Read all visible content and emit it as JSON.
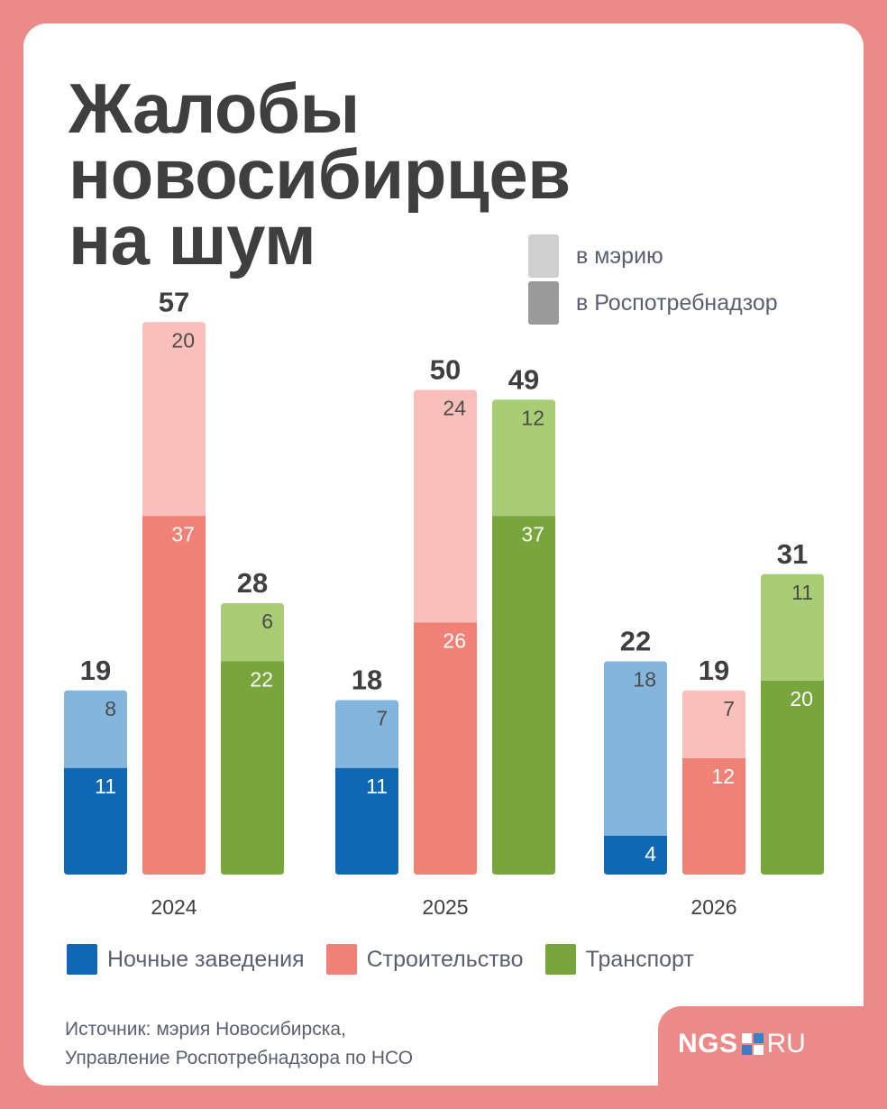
{
  "title_lines": [
    "Жалобы",
    "новосибирцев",
    "на шум"
  ],
  "legend_top": [
    {
      "label": "в мэрию",
      "color": "#cfcfcf"
    },
    {
      "label": "в Роспотребнадзор",
      "color": "#9a9a9a"
    }
  ],
  "colors": {
    "nightlife": {
      "dark": "#1068b4",
      "light": "#84b6dd"
    },
    "construction": {
      "dark": "#ef8177",
      "light": "#f8bfbb"
    },
    "transport": {
      "dark": "#78a63c",
      "light": "#a8cd74"
    },
    "value_text_dark": "#ffffff",
    "value_text_light": "#4b4b4b",
    "total_text": "#3f3f3f",
    "axis_text": "#3f3f3f"
  },
  "chart_data": {
    "type": "bar",
    "stacked": true,
    "categories": [
      "2024",
      "2025",
      "2026"
    ],
    "groups": [
      "Ночные заведения",
      "Строительство",
      "Транспорт"
    ],
    "stack_parts": [
      "в Роспотребнадзор",
      "в мэрию"
    ],
    "series": [
      {
        "name": "Ночные заведения",
        "color_key": "nightlife",
        "rospotrebnadzor": [
          11,
          11,
          4
        ],
        "meriya": [
          8,
          7,
          18
        ],
        "totals": [
          19,
          18,
          22
        ]
      },
      {
        "name": "Строительство",
        "color_key": "construction",
        "rospotrebnadzor": [
          37,
          26,
          12
        ],
        "meriya": [
          20,
          24,
          7
        ],
        "totals": [
          57,
          50,
          19
        ]
      },
      {
        "name": "Транспорт",
        "color_key": "transport",
        "rospotrebnadzor": [
          22,
          37,
          20
        ],
        "meriya": [
          6,
          12,
          11
        ],
        "totals": [
          28,
          49,
          31
        ]
      }
    ],
    "ylim": [
      0,
      57
    ],
    "grid": false,
    "legend_position": "bottom"
  },
  "legend_bottom": [
    {
      "label": "Ночные заведения",
      "color": "#1068b4"
    },
    {
      "label": "Строительство",
      "color": "#ef8177"
    },
    {
      "label": "Транспорт",
      "color": "#78a63c"
    }
  ],
  "source_lines": [
    "Источник: мэрия Новосибирска,",
    "Управление Роспотребнадзора по НСО"
  ],
  "logo": {
    "left": "NGS",
    "right": "RU"
  }
}
